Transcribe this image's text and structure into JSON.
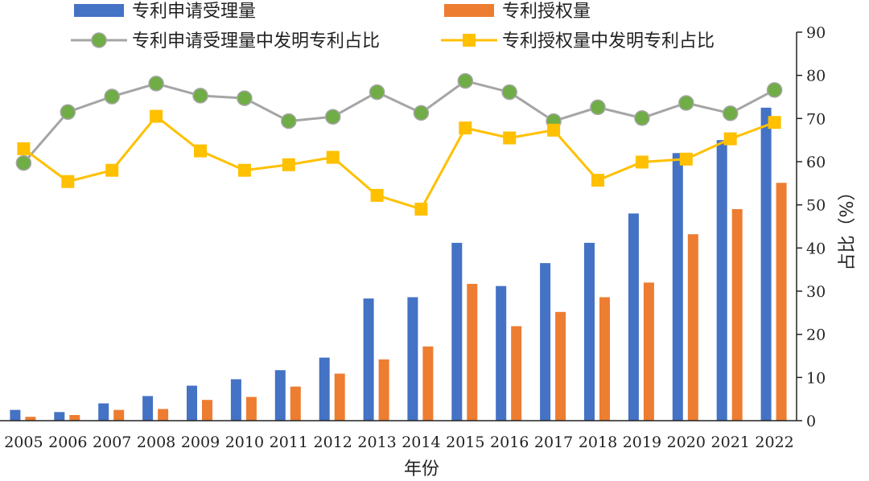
{
  "chart_data": {
    "type": "bar+line",
    "categories": [
      "2005",
      "2006",
      "2007",
      "2008",
      "2009",
      "2010",
      "2011",
      "2012",
      "2013",
      "2014",
      "2015",
      "2016",
      "2017",
      "2018",
      "2019",
      "2020",
      "2021",
      "2022"
    ],
    "bar_series": [
      {
        "name": "专利申请受理量",
        "color": "#4472c4",
        "values": [
          2.5,
          2.0,
          4.0,
          5.7,
          8.1,
          9.6,
          11.7,
          14.6,
          28.3,
          28.6,
          41.2,
          31.2,
          36.5,
          41.2,
          48.0,
          62.0,
          65.0,
          72.5
        ]
      },
      {
        "name": "专利授权量",
        "color": "#ed7d31",
        "values": [
          0.9,
          1.3,
          2.5,
          2.7,
          4.8,
          5.5,
          7.9,
          10.9,
          14.2,
          17.2,
          31.7,
          21.9,
          25.2,
          28.6,
          32.0,
          43.2,
          49.0,
          55.1
        ]
      }
    ],
    "line_series": [
      {
        "name": "专利申请受理量中发明专利占比",
        "line_color": "#a5a5a5",
        "marker": "circle",
        "marker_color": "#70ad47",
        "values": [
          59.7,
          71.5,
          75.1,
          78.1,
          75.3,
          74.7,
          69.4,
          70.4,
          76.1,
          71.3,
          78.7,
          76.1,
          69.4,
          72.6,
          70.1,
          73.6,
          71.2,
          76.6
        ]
      },
      {
        "name": "专利授权量中发明专利占比",
        "line_color": "#ffc000",
        "marker": "square",
        "marker_color": "#ffc000",
        "values": [
          63.0,
          55.4,
          58.0,
          70.5,
          62.5,
          58.0,
          59.3,
          61.0,
          52.2,
          49.0,
          67.8,
          65.5,
          67.3,
          55.7,
          59.9,
          60.6,
          65.3,
          69.1
        ]
      }
    ],
    "xlabel": "年份",
    "y2label": "占比（%）",
    "y2lim": [
      0,
      90
    ],
    "y2ticks": [
      "0",
      "10",
      "20",
      "30",
      "40",
      "50",
      "60",
      "70",
      "80",
      "90"
    ],
    "legend": [
      {
        "label": "专利申请受理量",
        "kind": "bar",
        "color": "#4472c4"
      },
      {
        "label": "专利授权量",
        "kind": "bar",
        "color": "#ed7d31"
      },
      {
        "label": "专利申请受理量中发明专利占比",
        "kind": "line-circle",
        "color": "#a5a5a5",
        "marker_color": "#70ad47"
      },
      {
        "label": "专利授权量中发明专利占比",
        "kind": "line-square",
        "color": "#ffc000",
        "marker_color": "#ffc000"
      }
    ],
    "legend_position": "top",
    "grid": false
  }
}
